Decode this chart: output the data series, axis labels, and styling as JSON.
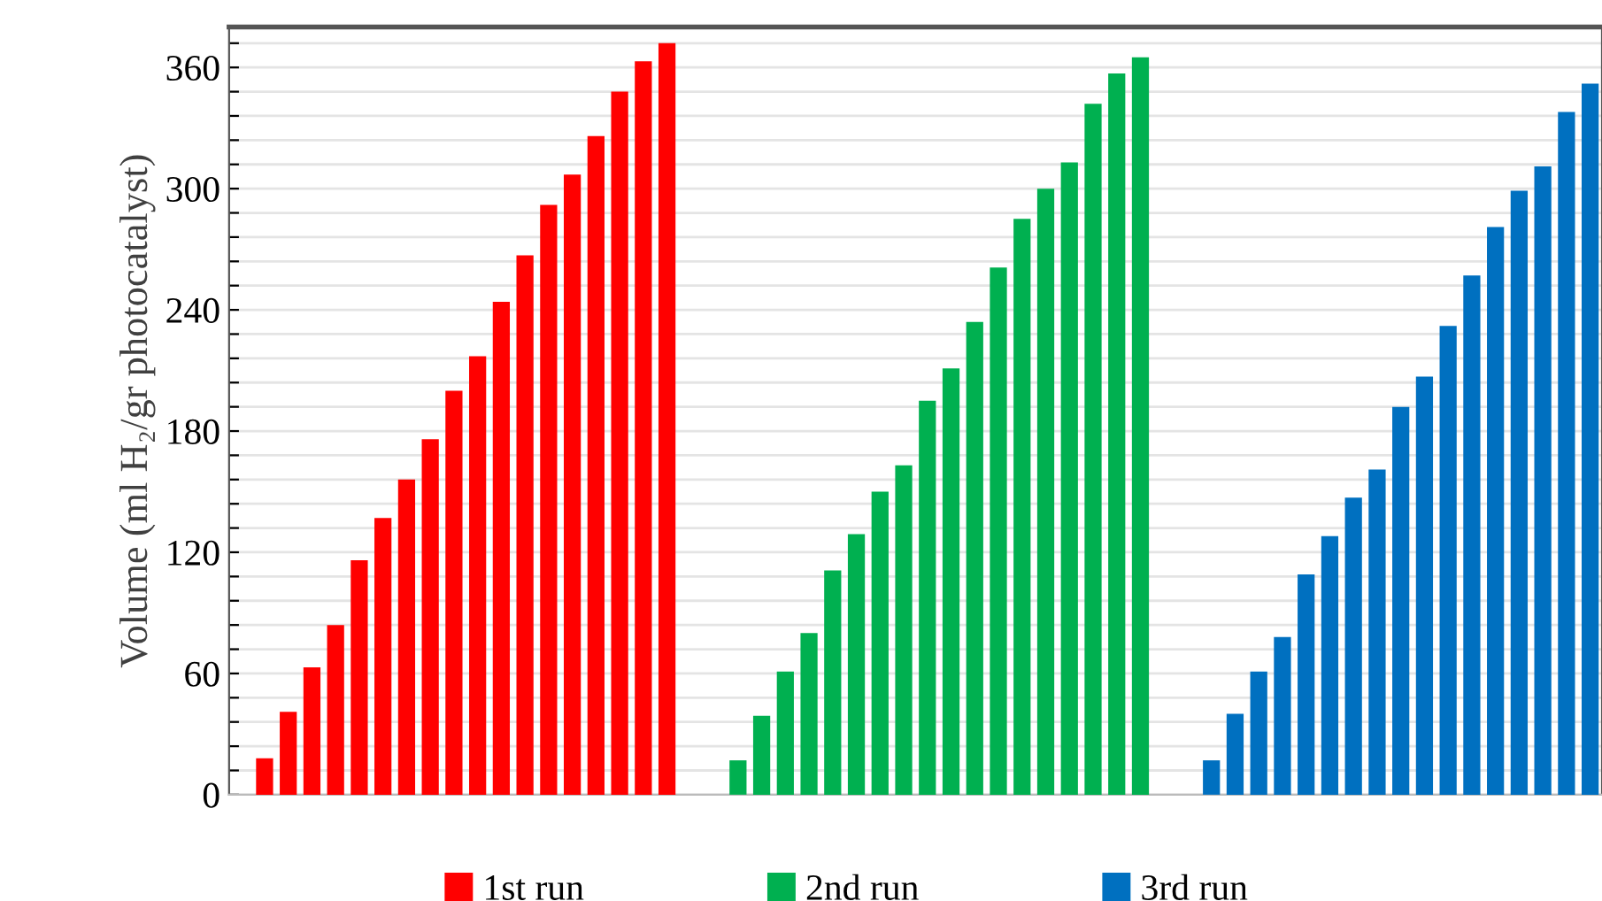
{
  "chart_data": {
    "type": "bar",
    "ylabel": "Volume (ml H₂/gr photocatalyst)",
    "categories": [
      null,
      null,
      null,
      null,
      null,
      null,
      null,
      null,
      null,
      null,
      null,
      null,
      null,
      null,
      null,
      null,
      null,
      null,
      null,
      null,
      null,
      null,
      null,
      null,
      null,
      null,
      null,
      null,
      null,
      null,
      null,
      null,
      null,
      null,
      null,
      null,
      null,
      null,
      null,
      null,
      null,
      null,
      null,
      null,
      null,
      null,
      null,
      null,
      null,
      null,
      null,
      null,
      null,
      null,
      null,
      null,
      null,
      null
    ],
    "series": [
      {
        "name": "1st run",
        "color": "#ff0000",
        "values": [
          null,
          18,
          41,
          63,
          84,
          116,
          137,
          156,
          176,
          200,
          217,
          244,
          267,
          292,
          307,
          326,
          348,
          363,
          372,
          null,
          null,
          null,
          null,
          null,
          null,
          null,
          null,
          null,
          null,
          null,
          null,
          null,
          null,
          null,
          null,
          null,
          null,
          null,
          null,
          null,
          null,
          null,
          null,
          null,
          null,
          null,
          null,
          null,
          null,
          null,
          null,
          null,
          null,
          null,
          null,
          null,
          null,
          null
        ]
      },
      {
        "name": "2nd run",
        "color": "#00b050",
        "values": [
          null,
          null,
          null,
          null,
          null,
          null,
          null,
          null,
          null,
          null,
          null,
          null,
          null,
          null,
          null,
          null,
          null,
          null,
          null,
          null,
          null,
          17,
          39,
          61,
          80,
          111,
          129,
          150,
          163,
          195,
          211,
          234,
          261,
          285,
          300,
          313,
          342,
          357,
          365,
          null,
          null,
          null,
          null,
          null,
          null,
          null,
          null,
          null,
          null,
          null,
          null,
          null,
          null,
          null,
          null,
          null,
          null,
          null
        ]
      },
      {
        "name": "3rd run",
        "color": "#0070c0",
        "values": [
          null,
          null,
          null,
          null,
          null,
          null,
          null,
          null,
          null,
          null,
          null,
          null,
          null,
          null,
          null,
          null,
          null,
          null,
          null,
          null,
          null,
          null,
          null,
          null,
          null,
          null,
          null,
          null,
          null,
          null,
          null,
          null,
          null,
          null,
          null,
          null,
          null,
          null,
          null,
          null,
          null,
          17,
          40,
          61,
          78,
          109,
          128,
          147,
          161,
          192,
          207,
          232,
          257,
          281,
          299,
          311,
          338,
          352
        ]
      }
    ],
    "ylim": [
      0,
      380
    ],
    "yticks": [
      0,
      {
        "value": 12,
        "label": null
      },
      {
        "value": 24,
        "label": null
      },
      {
        "value": 36,
        "label": null
      },
      {
        "value": 48,
        "label": null
      },
      60,
      {
        "value": 72,
        "label": null
      },
      {
        "value": 84,
        "label": null
      },
      {
        "value": 96,
        "label": null
      },
      {
        "value": 108,
        "label": null
      },
      120,
      {
        "value": 132,
        "label": null
      },
      {
        "value": 144,
        "label": null
      },
      {
        "value": 156,
        "label": null
      },
      {
        "value": 168,
        "label": null
      },
      180,
      {
        "value": 192,
        "label": null
      },
      {
        "value": 204,
        "label": null
      },
      {
        "value": 216,
        "label": null
      },
      {
        "value": 228,
        "label": null
      },
      240,
      {
        "value": 252,
        "label": null
      },
      {
        "value": 264,
        "label": null
      },
      {
        "value": 276,
        "label": null
      },
      {
        "value": 288,
        "label": null
      },
      300,
      {
        "value": 312,
        "label": null
      },
      {
        "value": 324,
        "label": null
      },
      {
        "value": 336,
        "label": null
      },
      {
        "value": 348,
        "label": null
      },
      360,
      {
        "value": 372,
        "label": null
      }
    ],
    "grid": "y",
    "legend": "bottom",
    "tick_labels": "y"
  }
}
